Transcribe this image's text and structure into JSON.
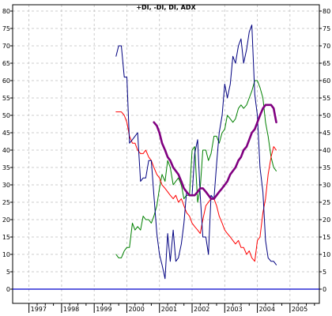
{
  "chart_data": {
    "type": "line",
    "title": "+DI, -DI, DI, ADX",
    "ylim": [
      0,
      80
    ],
    "y_ticks": [
      0,
      5,
      10,
      15,
      20,
      25,
      30,
      35,
      40,
      45,
      50,
      55,
      60,
      65,
      70,
      75,
      80
    ],
    "x_ticks": [
      "1997",
      "1998",
      "1999",
      "2000",
      "2001",
      "2002",
      "2003",
      "2004",
      "2005"
    ],
    "xlim": [
      1996.5,
      2005.9
    ],
    "grid": true,
    "baseline": 0,
    "colors": {
      "di_plus": "#008000",
      "di_minus": "#ff0000",
      "di": "#000080",
      "adx": "#800080",
      "baseline": "#0000cc",
      "grid": "#bfbfbf"
    },
    "series": [
      {
        "key": "di_plus",
        "x": [
          1999.67,
          1999.75,
          1999.83,
          1999.92,
          2000.0,
          2000.08,
          2000.17,
          2000.25,
          2000.33,
          2000.42,
          2000.5,
          2000.58,
          2000.67,
          2000.75,
          2000.83,
          2000.92,
          2001.0,
          2001.08,
          2001.17,
          2001.25,
          2001.33,
          2001.42,
          2001.5,
          2001.58,
          2001.67,
          2001.75,
          2001.83,
          2001.92,
          2002.0,
          2002.08,
          2002.17,
          2002.25,
          2002.33,
          2002.42,
          2002.5,
          2002.58,
          2002.67,
          2002.75,
          2002.83,
          2002.92,
          2003.0,
          2003.08,
          2003.17,
          2003.25,
          2003.33,
          2003.42,
          2003.5,
          2003.58,
          2003.67,
          2003.75,
          2003.83,
          2003.92,
          2004.0,
          2004.08,
          2004.17,
          2004.25,
          2004.33,
          2004.42,
          2004.5,
          2004.58
        ],
        "y": [
          10,
          9,
          9,
          11,
          12,
          12,
          19,
          17,
          18,
          17,
          21,
          20,
          20,
          19,
          21,
          24,
          29,
          33,
          31,
          37,
          35,
          30,
          31,
          32,
          30,
          26,
          27,
          27,
          40,
          41,
          25,
          29,
          40,
          40,
          37,
          39,
          44,
          44,
          42,
          45,
          46,
          50,
          49,
          48,
          49,
          52,
          53,
          52,
          53,
          55,
          57,
          60,
          60,
          58,
          55,
          48,
          44,
          38,
          35,
          34
        ]
      },
      {
        "key": "di_minus",
        "x": [
          1999.67,
          1999.75,
          1999.83,
          1999.92,
          2000.0,
          2000.08,
          2000.17,
          2000.25,
          2000.33,
          2000.42,
          2000.5,
          2000.58,
          2000.67,
          2000.75,
          2000.83,
          2000.92,
          2001.0,
          2001.08,
          2001.17,
          2001.25,
          2001.33,
          2001.42,
          2001.5,
          2001.58,
          2001.67,
          2001.75,
          2001.83,
          2001.92,
          2002.0,
          2002.08,
          2002.17,
          2002.25,
          2002.33,
          2002.42,
          2002.5,
          2002.58,
          2002.67,
          2002.75,
          2002.83,
          2002.92,
          2003.0,
          2003.08,
          2003.17,
          2003.25,
          2003.33,
          2003.42,
          2003.5,
          2003.58,
          2003.67,
          2003.75,
          2003.83,
          2003.92,
          2004.0,
          2004.08,
          2004.17,
          2004.25,
          2004.33,
          2004.42,
          2004.5,
          2004.58
        ],
        "y": [
          51,
          51,
          51,
          50,
          48,
          44,
          42,
          42,
          40,
          39,
          39,
          40,
          38,
          37,
          35,
          33,
          32,
          30,
          29,
          28,
          27,
          26,
          27,
          25,
          26,
          24,
          22,
          21,
          19,
          18,
          17,
          16,
          20,
          24,
          25,
          26,
          26,
          24,
          21,
          19,
          17,
          16,
          15,
          14,
          13,
          14,
          12,
          12,
          10,
          11,
          9,
          8,
          14,
          15,
          22,
          26,
          33,
          38,
          41,
          40
        ]
      },
      {
        "key": "di",
        "x": [
          1999.67,
          1999.75,
          1999.83,
          1999.92,
          2000.0,
          2000.08,
          2000.17,
          2000.25,
          2000.33,
          2000.42,
          2000.5,
          2000.58,
          2000.67,
          2000.75,
          2000.83,
          2000.92,
          2001.0,
          2001.08,
          2001.17,
          2001.25,
          2001.33,
          2001.42,
          2001.5,
          2001.58,
          2001.67,
          2001.75,
          2001.83,
          2001.92,
          2002.0,
          2002.08,
          2002.17,
          2002.25,
          2002.33,
          2002.42,
          2002.5,
          2002.58,
          2002.67,
          2002.75,
          2002.83,
          2002.92,
          2003.0,
          2003.08,
          2003.17,
          2003.25,
          2003.33,
          2003.42,
          2003.5,
          2003.58,
          2003.67,
          2003.75,
          2003.83,
          2003.92,
          2004.0,
          2004.08,
          2004.17,
          2004.25,
          2004.33,
          2004.42,
          2004.5,
          2004.58
        ],
        "y": [
          67,
          70,
          70,
          61,
          61,
          42,
          43,
          44,
          45,
          31,
          32,
          32,
          37,
          37,
          27,
          16,
          10,
          7,
          3,
          16,
          8,
          17,
          8,
          9,
          13,
          19,
          28,
          27,
          27,
          39,
          43,
          27,
          15,
          15,
          10,
          27,
          26,
          36,
          45,
          50,
          59,
          55,
          59,
          67,
          65,
          70,
          72,
          65,
          69,
          74,
          76,
          56,
          50,
          35,
          28,
          14,
          9,
          8,
          8,
          7
        ]
      },
      {
        "key": "adx",
        "x": [
          2000.83,
          2000.92,
          2001.0,
          2001.08,
          2001.17,
          2001.25,
          2001.33,
          2001.42,
          2001.5,
          2001.58,
          2001.67,
          2001.75,
          2001.83,
          2001.92,
          2002.0,
          2002.08,
          2002.17,
          2002.25,
          2002.33,
          2002.42,
          2002.5,
          2002.58,
          2002.67,
          2002.75,
          2002.83,
          2002.92,
          2003.0,
          2003.08,
          2003.17,
          2003.25,
          2003.33,
          2003.42,
          2003.5,
          2003.58,
          2003.67,
          2003.75,
          2003.83,
          2003.92,
          2004.0,
          2004.08,
          2004.17,
          2004.25,
          2004.33,
          2004.42,
          2004.5,
          2004.58
        ],
        "y": [
          48,
          47,
          45,
          42,
          40,
          38,
          37,
          35,
          34,
          33,
          31,
          29,
          28,
          27,
          27,
          27,
          28,
          29,
          29,
          28,
          27,
          26,
          26,
          27,
          28,
          29,
          30,
          31,
          33,
          34,
          35,
          37,
          38,
          40,
          41,
          43,
          45,
          46,
          48,
          50,
          52,
          53,
          53,
          53,
          52,
          48
        ]
      }
    ]
  }
}
